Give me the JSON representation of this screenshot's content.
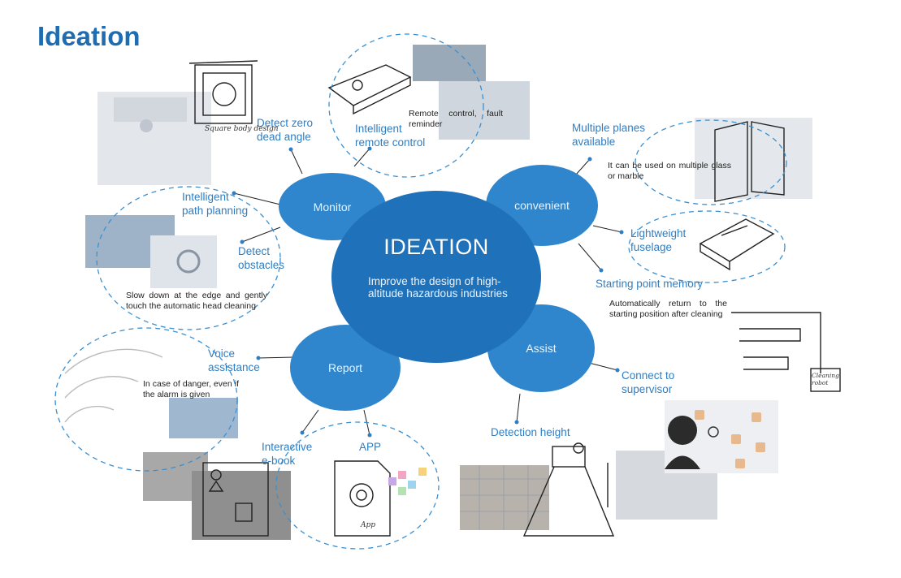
{
  "title": "Ideation",
  "center": {
    "title": "IDEATION",
    "subtitle": "Improve the design of high-altitude hazardous industries"
  },
  "categories": {
    "monitor": "Monitor",
    "convenient": "convenient",
    "report": "Report",
    "assist": "Assist"
  },
  "features": {
    "detect_zero": "Detect zero dead angle",
    "remote_control": "Intelligent remote control",
    "path_planning": "Intelligent path planning",
    "detect_obstacles": "Detect obstacles",
    "multiple_planes": "Multiple planes available",
    "lightweight": "Lightweight fuselage",
    "starting_point": "Starting point memory",
    "connect_supervisor": "Connect to supervisor",
    "detection_height": "Detection height",
    "voice": "Voice assistance",
    "ebook": "Interactive e-book",
    "app": "APP"
  },
  "notes": {
    "remote": "Remote control, fault reminder",
    "planes": "It can be used on multiple glass or marble",
    "slow": "Slow down at the edge and gently touch the automatic head cleaning",
    "return": "Automatically return to the starting position after cleaning",
    "danger": "In case of danger, even if the alarm is given"
  },
  "sketch_text": {
    "square": "Square body design",
    "cleaning": "Cleaning robot",
    "app": "App"
  },
  "colors": {
    "title": "#1e6db3",
    "center": "#1f71b9",
    "bubble": "#2f86cc",
    "label": "#2f7ec2",
    "dashed": "#3a8fd0"
  }
}
